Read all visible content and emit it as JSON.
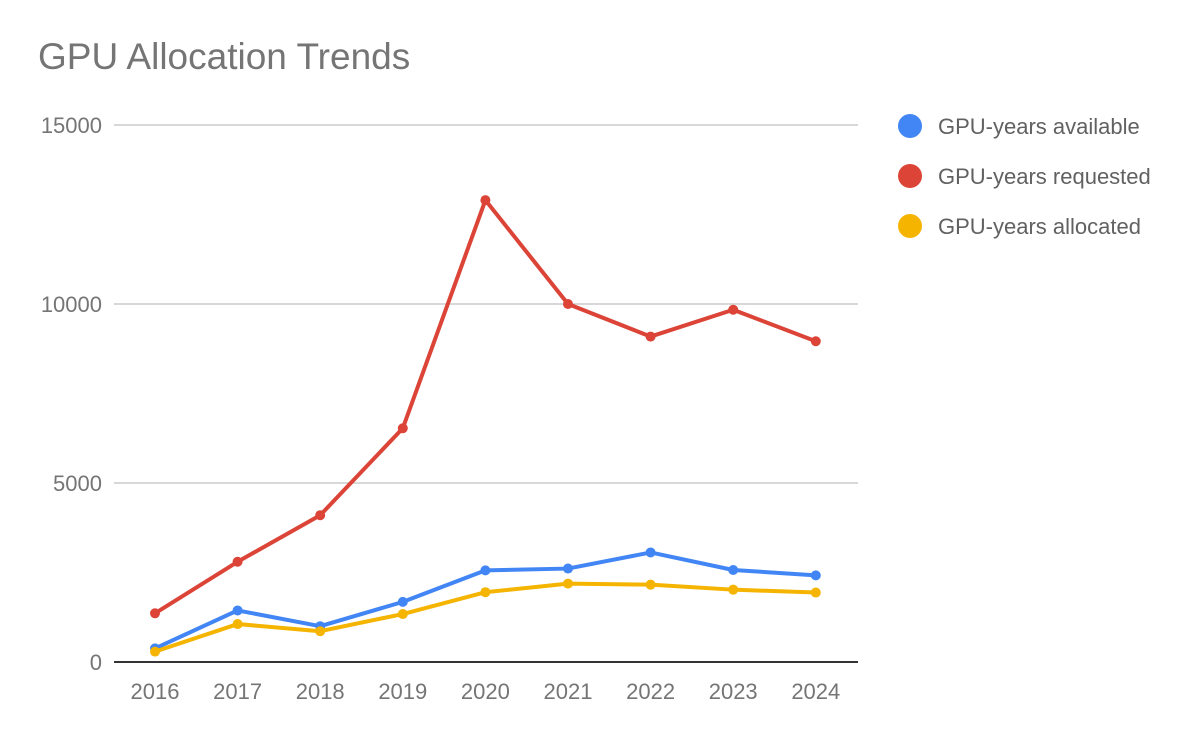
{
  "chart_data": {
    "type": "line",
    "title": "GPU Allocation Trends",
    "xlabel": "",
    "ylabel": "",
    "categories": [
      "2016",
      "2017",
      "2018",
      "2019",
      "2020",
      "2021",
      "2022",
      "2023",
      "2024"
    ],
    "ylim": [
      0,
      15000
    ],
    "yticks": [
      0,
      5000,
      10000,
      15000
    ],
    "ytick_labels": [
      "0",
      "5000",
      "10000",
      "15000"
    ],
    "grid": true,
    "legend_position": "right",
    "series": [
      {
        "name": "GPU-years available",
        "color": "#4285f4",
        "values": [
          380,
          1440,
          1000,
          1680,
          2560,
          2610,
          3060,
          2570,
          2420
        ]
      },
      {
        "name": "GPU-years requested",
        "color": "#db4437",
        "values": [
          1360,
          2800,
          4100,
          6530,
          12900,
          10000,
          9090,
          9840,
          8960
        ]
      },
      {
        "name": "GPU-years allocated",
        "color": "#f4b400",
        "values": [
          290,
          1060,
          860,
          1340,
          1950,
          2190,
          2160,
          2020,
          1940
        ]
      }
    ]
  }
}
